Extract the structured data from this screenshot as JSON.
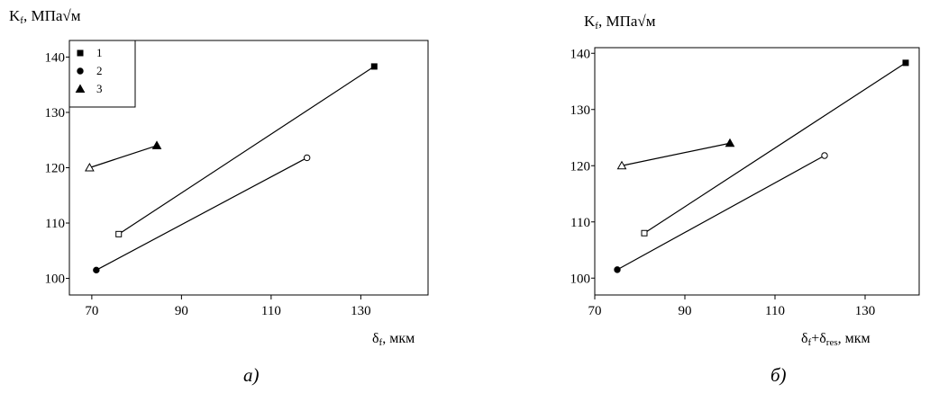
{
  "chart_data": [
    {
      "type": "line",
      "caption": "а)",
      "ylabel": {
        "main": "K",
        "sub": "f",
        "rest": ", МПа√м"
      },
      "xlabel": {
        "main": "δ",
        "sub": "f",
        "rest": ", мкм"
      },
      "xlim": [
        65,
        145
      ],
      "ylim": [
        97,
        143
      ],
      "x_ticks": [
        70,
        90,
        110,
        130
      ],
      "y_ticks": [
        100,
        110,
        120,
        130,
        140
      ],
      "legend": {
        "placement": "top-left",
        "entries": [
          {
            "label": "1",
            "marker": "square"
          },
          {
            "label": "2",
            "marker": "circle"
          },
          {
            "label": "3",
            "marker": "triangle"
          }
        ]
      },
      "series": [
        {
          "name": "1",
          "marker": "square",
          "points": [
            {
              "x": 76,
              "y": 108,
              "filled": false
            },
            {
              "x": 133,
              "y": 138.3,
              "filled": true
            }
          ]
        },
        {
          "name": "2",
          "marker": "circle",
          "points": [
            {
              "x": 71,
              "y": 101.5,
              "filled": true
            },
            {
              "x": 118,
              "y": 121.8,
              "filled": false
            }
          ]
        },
        {
          "name": "3",
          "marker": "triangle",
          "points": [
            {
              "x": 69.5,
              "y": 120,
              "filled": false
            },
            {
              "x": 84.5,
              "y": 124,
              "filled": true
            }
          ]
        }
      ]
    },
    {
      "type": "line",
      "caption": "б)",
      "ylabel": {
        "main": "K",
        "sub": "f",
        "rest": ", МПа√м"
      },
      "xlabel": {
        "main": "δ",
        "sub": "f",
        "mid": "+δ",
        "sub2": "res",
        "rest": ", мкм"
      },
      "xlim": [
        70,
        142
      ],
      "ylim": [
        97,
        141
      ],
      "x_ticks": [
        70,
        90,
        110,
        130
      ],
      "y_ticks": [
        100,
        110,
        120,
        130,
        140
      ],
      "series": [
        {
          "name": "1",
          "marker": "square",
          "points": [
            {
              "x": 81,
              "y": 108,
              "filled": false
            },
            {
              "x": 139,
              "y": 138.3,
              "filled": true
            }
          ]
        },
        {
          "name": "2",
          "marker": "circle",
          "points": [
            {
              "x": 75,
              "y": 101.5,
              "filled": true
            },
            {
              "x": 121,
              "y": 121.8,
              "filled": false
            }
          ]
        },
        {
          "name": "3",
          "marker": "triangle",
          "points": [
            {
              "x": 76,
              "y": 120,
              "filled": false
            },
            {
              "x": 100,
              "y": 124,
              "filled": true
            }
          ]
        }
      ]
    }
  ]
}
